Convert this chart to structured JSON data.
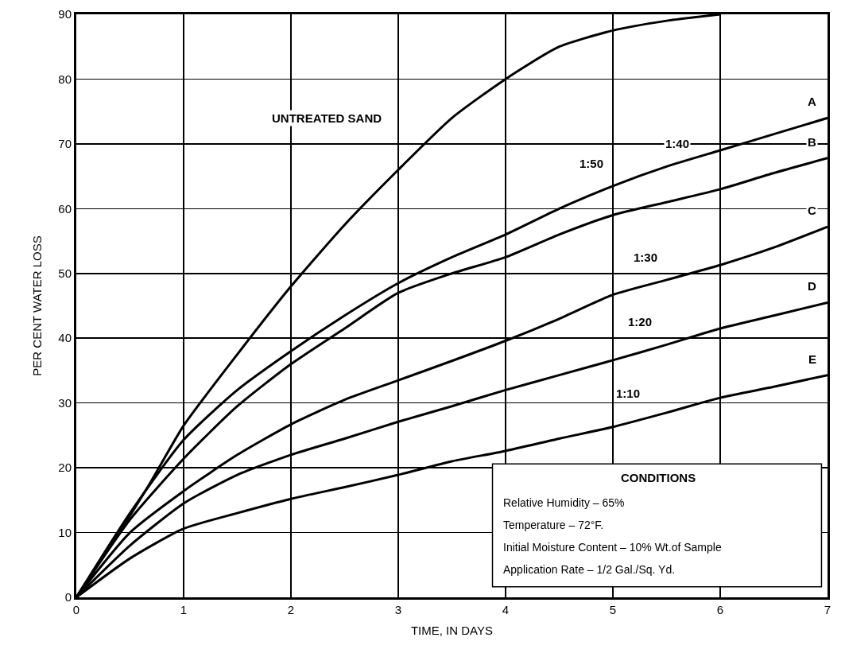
{
  "chart_data": {
    "type": "line",
    "xlabel": "TIME, IN DAYS",
    "ylabel": "PER CENT WATER LOSS",
    "x": [
      0,
      0.5,
      1,
      1.5,
      2,
      2.5,
      3,
      3.5,
      4,
      4.5,
      5,
      5.5,
      6,
      6.5,
      7
    ],
    "series": [
      {
        "color": "#000000",
        "x": [
          0,
          0.4,
          0.7,
          1,
          1.5,
          2,
          2.5,
          3,
          3.5,
          4,
          4.5,
          5,
          5.5,
          6
        ],
        "values": [
          0,
          10,
          18,
          26.5,
          37.5,
          48,
          57.5,
          66,
          74,
          80,
          85,
          87.5,
          89,
          90
        ]
      },
      {
        "name": "A",
        "color": "#000000",
        "values": [
          0,
          13,
          24.3,
          32,
          38,
          43.5,
          48.5,
          52.5,
          56,
          60,
          63.5,
          66.5,
          69,
          71.5,
          74
        ]
      },
      {
        "name": "B",
        "color": "#000000",
        "values": [
          0,
          12,
          21.4,
          29.5,
          36,
          41.5,
          47,
          50,
          52.5,
          56,
          59,
          61,
          63,
          65.5,
          67.8
        ]
      },
      {
        "name": "C",
        "color": "#000000",
        "values": [
          0,
          10,
          16.4,
          22,
          26.7,
          30.5,
          33.5,
          36.5,
          39.6,
          43,
          46.7,
          49,
          51.3,
          54,
          57.2
        ]
      },
      {
        "name": "D",
        "color": "#000000",
        "values": [
          0,
          8,
          14.5,
          18.9,
          22,
          24.5,
          27.1,
          29.5,
          32,
          34.3,
          36.6,
          39,
          41.5,
          43.5,
          45.5
        ]
      },
      {
        "name": "E",
        "color": "#000000",
        "values": [
          0,
          6,
          10.6,
          13,
          15.2,
          17,
          18.9,
          21,
          22.6,
          24.5,
          26.3,
          28.5,
          30.8,
          32.5,
          34.3
        ]
      }
    ],
    "xlim": [
      0,
      7
    ],
    "ylim": [
      0,
      90
    ],
    "xticks": [
      0,
      1,
      2,
      3,
      4,
      5,
      6,
      7
    ],
    "yticks": [
      0,
      10,
      20,
      30,
      40,
      50,
      60,
      70,
      80,
      90
    ],
    "grid": true,
    "legend": false,
    "marker": "none",
    "line_style": "solid",
    "annotations": [
      "CONDITIONS",
      "Relative Humidity – 65%",
      "Temperature – 72°F.",
      "Initial Moisture Content – 10% Wt.of Sample",
      "Application Rate – 1/2 Gal./Sq. Yd.",
      "UNTREATED SAND",
      {
        "text": "1:50",
        "x": 4.8,
        "y": 67
      },
      {
        "text": "1:40",
        "x": 5.6,
        "y": 70
      },
      {
        "text": "1:30",
        "x": 5.3,
        "y": 52.5
      },
      {
        "text": "1:20",
        "x": 5.25,
        "y": 42.5
      },
      {
        "text": "1:10",
        "x": 5.14,
        "y": 31.5
      }
    ]
  }
}
